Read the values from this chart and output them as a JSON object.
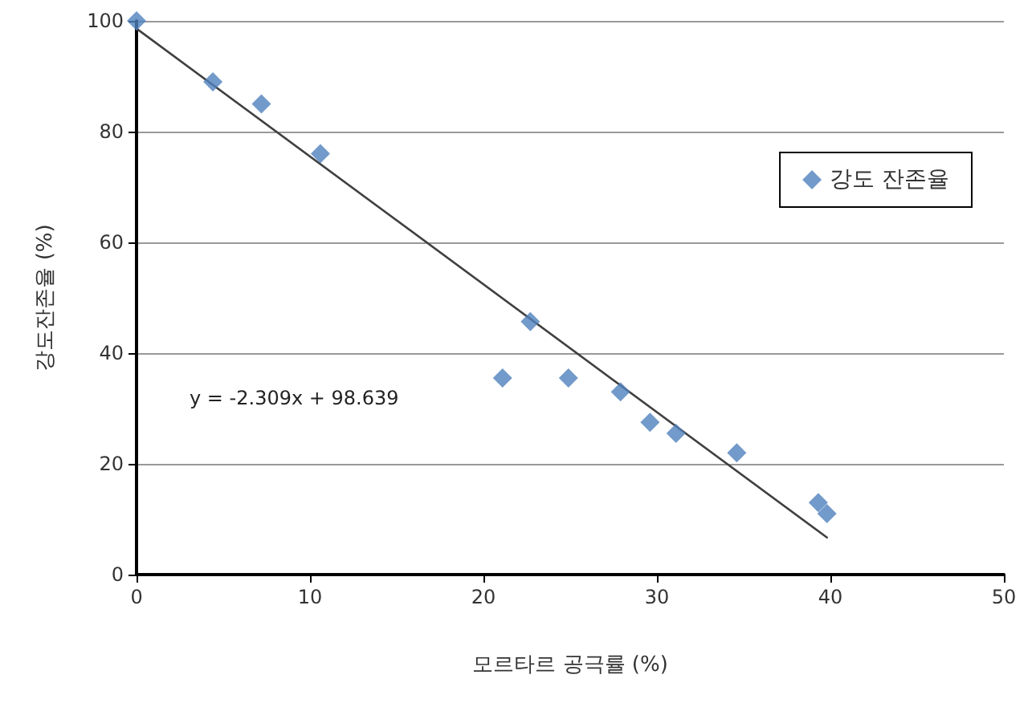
{
  "chart_data": {
    "type": "scatter",
    "xlabel": "모르타르 공극률 (%)",
    "ylabel": "강도잔존율 (%)",
    "xlim": [
      0,
      50
    ],
    "xticks": [
      0,
      10,
      20,
      30,
      40,
      50
    ],
    "ylim": [
      0,
      100
    ],
    "yticks": [
      0,
      20,
      40,
      60,
      80,
      100
    ],
    "grid": "y",
    "legend": "top right",
    "marker": "diamond",
    "series": [
      {
        "name": "강도 잔존율",
        "color": "#4f81bd",
        "x": [
          0,
          4.4,
          7.2,
          10.6,
          21.1,
          22.7,
          24.9,
          27.9,
          29.6,
          31.1,
          34.6,
          39.3,
          39.8
        ],
        "values": [
          100,
          89,
          85,
          76,
          35.5,
          45.7,
          35.5,
          33,
          27.5,
          25.5,
          22,
          13,
          11
        ]
      },
      {
        "type": "line",
        "color": "#404040",
        "x": [
          0,
          39.8
        ],
        "values": [
          98.6,
          6.7
        ],
        "marker": "none"
      }
    ],
    "annotations": [
      "y = -2.309x + 98.639"
    ]
  }
}
